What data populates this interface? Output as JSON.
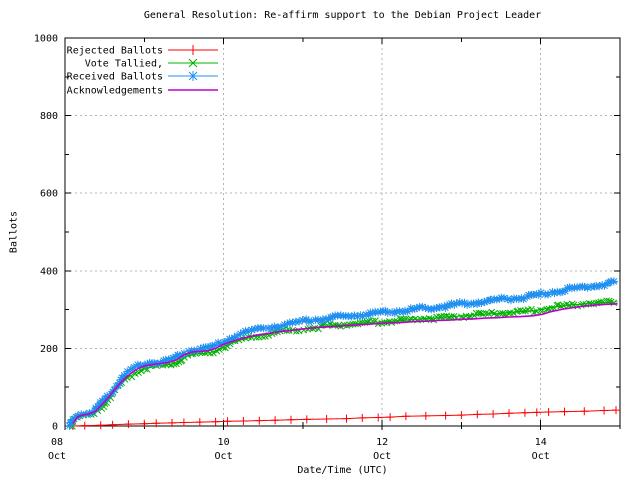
{
  "chart_data": {
    "type": "line",
    "title": "General Resolution: Re-affirm support to the Debian Project Leader",
    "xlabel": "Date/Time (UTC)",
    "ylabel": "Ballots",
    "ylim": [
      0,
      1000
    ],
    "xlim_days": [
      0,
      7
    ],
    "grid": true,
    "legend_position": "top-left",
    "y_major_ticks": [
      0,
      200,
      400,
      600,
      800,
      1000
    ],
    "y_minor_step": 100,
    "x_major_ticks": [
      {
        "day_offset": 0,
        "line1": "08",
        "line2": "Oct"
      },
      {
        "day_offset": 2,
        "line1": "10",
        "line2": "Oct"
      },
      {
        "day_offset": 4,
        "line1": "12",
        "line2": "Oct"
      },
      {
        "day_offset": 6,
        "line1": "14",
        "line2": "Oct"
      }
    ],
    "x_minor_day_offsets": [
      1,
      3,
      5,
      7
    ],
    "series": [
      {
        "name": "Rejected Ballots",
        "color": "#ff0000",
        "marker": "plus",
        "dense": false,
        "points": [
          [
            0.1,
            0
          ],
          [
            0.25,
            1
          ],
          [
            0.45,
            2
          ],
          [
            0.6,
            3
          ],
          [
            0.8,
            5
          ],
          [
            1.0,
            6
          ],
          [
            1.15,
            7
          ],
          [
            1.35,
            8
          ],
          [
            1.5,
            9
          ],
          [
            1.7,
            10
          ],
          [
            1.9,
            11
          ],
          [
            2.05,
            12
          ],
          [
            2.25,
            13
          ],
          [
            2.45,
            14
          ],
          [
            2.65,
            15
          ],
          [
            2.85,
            16
          ],
          [
            3.05,
            17
          ],
          [
            3.3,
            18
          ],
          [
            3.55,
            19
          ],
          [
            3.75,
            21
          ],
          [
            3.95,
            22
          ],
          [
            4.1,
            23
          ],
          [
            4.3,
            25
          ],
          [
            4.55,
            26
          ],
          [
            4.8,
            27
          ],
          [
            5.0,
            28
          ],
          [
            5.2,
            30
          ],
          [
            5.4,
            31
          ],
          [
            5.6,
            33
          ],
          [
            5.8,
            34
          ],
          [
            5.95,
            35
          ],
          [
            6.1,
            36
          ],
          [
            6.3,
            37
          ],
          [
            6.55,
            38
          ],
          [
            6.8,
            40
          ],
          [
            6.95,
            41
          ]
        ]
      },
      {
        "name": "Vote Tallied,",
        "color": "#00b000",
        "marker": "cross",
        "dense": true,
        "points": [
          [
            0.08,
            0
          ],
          [
            0.1,
            10
          ],
          [
            0.13,
            16
          ],
          [
            0.16,
            21
          ],
          [
            0.2,
            24
          ],
          [
            0.25,
            26
          ],
          [
            0.3,
            27
          ],
          [
            0.34,
            29
          ],
          [
            0.38,
            33
          ],
          [
            0.42,
            41
          ],
          [
            0.46,
            49
          ],
          [
            0.5,
            58
          ],
          [
            0.54,
            67
          ],
          [
            0.57,
            75
          ],
          [
            0.61,
            84
          ],
          [
            0.64,
            92
          ],
          [
            0.68,
            100
          ],
          [
            0.72,
            110
          ],
          [
            0.76,
            118
          ],
          [
            0.8,
            125
          ],
          [
            0.84,
            131
          ],
          [
            0.88,
            137
          ],
          [
            0.92,
            142
          ],
          [
            0.96,
            146
          ],
          [
            1.0,
            149
          ],
          [
            1.06,
            151
          ],
          [
            1.12,
            153
          ],
          [
            1.2,
            155
          ],
          [
            1.28,
            157
          ],
          [
            1.34,
            160
          ],
          [
            1.4,
            164
          ],
          [
            1.45,
            170
          ],
          [
            1.5,
            177
          ],
          [
            1.55,
            182
          ],
          [
            1.62,
            185
          ],
          [
            1.7,
            186
          ],
          [
            1.78,
            188
          ],
          [
            1.84,
            190
          ],
          [
            1.9,
            194
          ],
          [
            1.94,
            199
          ],
          [
            1.98,
            203
          ],
          [
            2.04,
            208
          ],
          [
            2.1,
            213
          ],
          [
            2.16,
            218
          ],
          [
            2.24,
            223
          ],
          [
            2.32,
            227
          ],
          [
            2.4,
            231
          ],
          [
            2.48,
            234
          ],
          [
            2.56,
            237
          ],
          [
            2.64,
            240
          ],
          [
            2.72,
            243
          ],
          [
            2.8,
            245
          ],
          [
            2.88,
            247
          ],
          [
            2.96,
            249
          ],
          [
            3.05,
            252
          ],
          [
            3.15,
            254
          ],
          [
            3.25,
            256
          ],
          [
            3.35,
            258
          ],
          [
            3.45,
            260
          ],
          [
            3.55,
            262
          ],
          [
            3.65,
            264
          ],
          [
            3.75,
            265
          ],
          [
            3.85,
            267
          ],
          [
            3.95,
            268
          ],
          [
            4.05,
            270
          ],
          [
            4.15,
            271
          ],
          [
            4.25,
            272
          ],
          [
            4.35,
            274
          ],
          [
            4.45,
            275
          ],
          [
            4.55,
            277
          ],
          [
            4.65,
            278
          ],
          [
            4.75,
            280
          ],
          [
            4.85,
            281
          ],
          [
            4.95,
            283
          ],
          [
            5.05,
            284
          ],
          [
            5.15,
            286
          ],
          [
            5.25,
            287
          ],
          [
            5.35,
            289
          ],
          [
            5.45,
            290
          ],
          [
            5.55,
            292
          ],
          [
            5.65,
            293
          ],
          [
            5.75,
            295
          ],
          [
            5.85,
            296
          ],
          [
            5.95,
            298
          ],
          [
            6.02,
            301
          ],
          [
            6.1,
            304
          ],
          [
            6.2,
            307
          ],
          [
            6.3,
            310
          ],
          [
            6.4,
            312
          ],
          [
            6.5,
            314
          ],
          [
            6.6,
            316
          ],
          [
            6.7,
            317
          ],
          [
            6.8,
            318
          ],
          [
            6.9,
            319
          ],
          [
            6.97,
            320
          ]
        ]
      },
      {
        "name": "Received Ballots",
        "color": "#2090f0",
        "marker": "asterisk",
        "dense": true,
        "points": [
          [
            0.06,
            0
          ],
          [
            0.08,
            12
          ],
          [
            0.1,
            20
          ],
          [
            0.13,
            26
          ],
          [
            0.16,
            29
          ],
          [
            0.2,
            31
          ],
          [
            0.25,
            33
          ],
          [
            0.3,
            34
          ],
          [
            0.34,
            36
          ],
          [
            0.38,
            41
          ],
          [
            0.42,
            50
          ],
          [
            0.46,
            59
          ],
          [
            0.5,
            68
          ],
          [
            0.54,
            78
          ],
          [
            0.57,
            87
          ],
          [
            0.61,
            96
          ],
          [
            0.64,
            104
          ],
          [
            0.68,
            113
          ],
          [
            0.72,
            122
          ],
          [
            0.76,
            130
          ],
          [
            0.8,
            137
          ],
          [
            0.84,
            143
          ],
          [
            0.88,
            149
          ],
          [
            0.92,
            154
          ],
          [
            0.96,
            158
          ],
          [
            1.0,
            161
          ],
          [
            1.06,
            163
          ],
          [
            1.12,
            165
          ],
          [
            1.2,
            166
          ],
          [
            1.28,
            168
          ],
          [
            1.34,
            171
          ],
          [
            1.4,
            176
          ],
          [
            1.45,
            182
          ],
          [
            1.5,
            189
          ],
          [
            1.55,
            194
          ],
          [
            1.62,
            197
          ],
          [
            1.7,
            198
          ],
          [
            1.78,
            200
          ],
          [
            1.84,
            202
          ],
          [
            1.9,
            206
          ],
          [
            1.94,
            211
          ],
          [
            1.98,
            216
          ],
          [
            2.04,
            222
          ],
          [
            2.1,
            228
          ],
          [
            2.16,
            233
          ],
          [
            2.24,
            238
          ],
          [
            2.32,
            243
          ],
          [
            2.4,
            247
          ],
          [
            2.48,
            251
          ],
          [
            2.56,
            254
          ],
          [
            2.64,
            257
          ],
          [
            2.72,
            260
          ],
          [
            2.8,
            263
          ],
          [
            2.88,
            266
          ],
          [
            2.96,
            268
          ],
          [
            3.05,
            271
          ],
          [
            3.15,
            274
          ],
          [
            3.25,
            276
          ],
          [
            3.35,
            279
          ],
          [
            3.45,
            281
          ],
          [
            3.55,
            283
          ],
          [
            3.65,
            285
          ],
          [
            3.75,
            287
          ],
          [
            3.85,
            289
          ],
          [
            3.95,
            291
          ],
          [
            4.05,
            293
          ],
          [
            4.15,
            295
          ],
          [
            4.25,
            297
          ],
          [
            4.35,
            299
          ],
          [
            4.45,
            302
          ],
          [
            4.55,
            304
          ],
          [
            4.65,
            306
          ],
          [
            4.75,
            308
          ],
          [
            4.85,
            311
          ],
          [
            4.95,
            313
          ],
          [
            5.05,
            316
          ],
          [
            5.15,
            318
          ],
          [
            5.25,
            320
          ],
          [
            5.35,
            322
          ],
          [
            5.45,
            325
          ],
          [
            5.55,
            327
          ],
          [
            5.65,
            329
          ],
          [
            5.75,
            331
          ],
          [
            5.85,
            333
          ],
          [
            5.95,
            336
          ],
          [
            6.02,
            340
          ],
          [
            6.1,
            344
          ],
          [
            6.2,
            348
          ],
          [
            6.3,
            351
          ],
          [
            6.4,
            354
          ],
          [
            6.5,
            357
          ],
          [
            6.6,
            360
          ],
          [
            6.7,
            363
          ],
          [
            6.8,
            366
          ],
          [
            6.9,
            369
          ],
          [
            6.97,
            371
          ]
        ]
      },
      {
        "name": "Acknowledgements",
        "color": "#bb00cc",
        "marker": "none",
        "dense": false,
        "points": [
          [
            0.1,
            6
          ],
          [
            0.16,
            24
          ],
          [
            0.22,
            28
          ],
          [
            0.3,
            31
          ],
          [
            0.38,
            37
          ],
          [
            0.46,
            54
          ],
          [
            0.54,
            72
          ],
          [
            0.61,
            90
          ],
          [
            0.68,
            107
          ],
          [
            0.76,
            124
          ],
          [
            0.84,
            137
          ],
          [
            0.92,
            148
          ],
          [
            1.0,
            155
          ],
          [
            1.1,
            158
          ],
          [
            1.2,
            161
          ],
          [
            1.3,
            164
          ],
          [
            1.4,
            170
          ],
          [
            1.5,
            183
          ],
          [
            1.6,
            191
          ],
          [
            1.7,
            192
          ],
          [
            1.8,
            194
          ],
          [
            1.9,
            200
          ],
          [
            1.98,
            209
          ],
          [
            2.06,
            215
          ],
          [
            2.14,
            220
          ],
          [
            2.24,
            226
          ],
          [
            2.34,
            231
          ],
          [
            2.44,
            235
          ],
          [
            2.54,
            238
          ],
          [
            2.64,
            241
          ],
          [
            2.74,
            244
          ],
          [
            2.84,
            246
          ],
          [
            2.94,
            249
          ],
          [
            3.06,
            251
          ],
          [
            3.2,
            254
          ],
          [
            3.35,
            256
          ],
          [
            3.5,
            258
          ],
          [
            3.65,
            260
          ],
          [
            3.8,
            262
          ],
          [
            3.95,
            264
          ],
          [
            4.1,
            266
          ],
          [
            4.25,
            267
          ],
          [
            4.4,
            269
          ],
          [
            4.55,
            270
          ],
          [
            4.7,
            272
          ],
          [
            4.85,
            273
          ],
          [
            5.0,
            275
          ],
          [
            5.15,
            276
          ],
          [
            5.3,
            278
          ],
          [
            5.45,
            279
          ],
          [
            5.6,
            281
          ],
          [
            5.75,
            282
          ],
          [
            5.9,
            284
          ],
          [
            6.02,
            288
          ],
          [
            6.12,
            294
          ],
          [
            6.25,
            300
          ],
          [
            6.4,
            305
          ],
          [
            6.55,
            309
          ],
          [
            6.7,
            312
          ],
          [
            6.85,
            314
          ],
          [
            6.97,
            315
          ]
        ]
      }
    ]
  }
}
